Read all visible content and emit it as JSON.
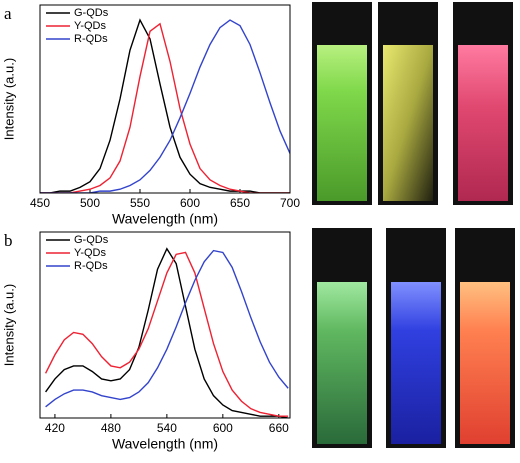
{
  "chart_data": [
    {
      "type": "line",
      "panel_label": "a",
      "x_label": "Wavelength (nm)",
      "y_label": "Intensity (a.u.)",
      "x": [
        450,
        460,
        470,
        480,
        490,
        500,
        510,
        520,
        530,
        540,
        550,
        560,
        570,
        580,
        590,
        600,
        610,
        620,
        630,
        640,
        650,
        660,
        670,
        680,
        690,
        700
      ],
      "xlim": [
        450,
        700
      ],
      "xticks": [
        450,
        500,
        550,
        600,
        650,
        700
      ],
      "ylim": [
        0,
        1
      ],
      "legend": "upper-left",
      "series": [
        {
          "name": "G-QDs",
          "color": "#000000",
          "values": [
            0,
            0,
            0.01,
            0.01,
            0.03,
            0.06,
            0.13,
            0.28,
            0.5,
            0.76,
            0.92,
            0.82,
            0.58,
            0.35,
            0.19,
            0.1,
            0.05,
            0.03,
            0.02,
            0.01,
            0.01,
            0.01,
            0,
            0,
            0,
            0
          ]
        },
        {
          "name": "Y-QDs",
          "color": "#ee2233",
          "values": [
            0,
            0,
            0,
            0,
            0.01,
            0.02,
            0.04,
            0.08,
            0.17,
            0.35,
            0.62,
            0.86,
            0.9,
            0.7,
            0.45,
            0.26,
            0.13,
            0.07,
            0.04,
            0.02,
            0.01,
            0,
            0,
            0,
            0,
            0
          ]
        },
        {
          "name": "R-QDs",
          "color": "#3344cc",
          "values": [
            0,
            0,
            0,
            0,
            0,
            0,
            0.01,
            0.01,
            0.02,
            0.04,
            0.07,
            0.12,
            0.19,
            0.28,
            0.4,
            0.53,
            0.67,
            0.79,
            0.88,
            0.92,
            0.89,
            0.79,
            0.64,
            0.48,
            0.33,
            0.21
          ]
        }
      ]
    },
    {
      "type": "line",
      "panel_label": "b",
      "x_label": "Wavelength (nm)",
      "y_label": "Intensity (a.u.)",
      "x": [
        410,
        420,
        430,
        440,
        450,
        460,
        470,
        480,
        490,
        500,
        510,
        520,
        530,
        540,
        550,
        560,
        570,
        580,
        590,
        600,
        610,
        620,
        630,
        640,
        650,
        660,
        670
      ],
      "xlim": [
        404,
        672
      ],
      "xticks": [
        420,
        480,
        540,
        600,
        660
      ],
      "ylim": [
        0,
        1
      ],
      "legend": "upper-left",
      "series": [
        {
          "name": "G-QDs",
          "color": "#000000",
          "values": [
            0.14,
            0.21,
            0.26,
            0.28,
            0.28,
            0.25,
            0.21,
            0.2,
            0.21,
            0.26,
            0.38,
            0.58,
            0.8,
            0.91,
            0.83,
            0.6,
            0.37,
            0.21,
            0.12,
            0.07,
            0.04,
            0.03,
            0.02,
            0.01,
            0.01,
            0.01,
            0
          ]
        },
        {
          "name": "Y-QDs",
          "color": "#ee2233",
          "values": [
            0.24,
            0.34,
            0.42,
            0.46,
            0.45,
            0.4,
            0.33,
            0.28,
            0.27,
            0.3,
            0.37,
            0.48,
            0.63,
            0.78,
            0.88,
            0.89,
            0.78,
            0.59,
            0.4,
            0.25,
            0.15,
            0.09,
            0.05,
            0.03,
            0.02,
            0.01,
            0.01
          ]
        },
        {
          "name": "R-QDs",
          "color": "#3344cc",
          "values": [
            0.06,
            0.1,
            0.13,
            0.15,
            0.15,
            0.14,
            0.12,
            0.11,
            0.1,
            0.11,
            0.14,
            0.19,
            0.27,
            0.37,
            0.49,
            0.62,
            0.74,
            0.84,
            0.9,
            0.89,
            0.81,
            0.68,
            0.54,
            0.41,
            0.3,
            0.22,
            0.16
          ]
        }
      ]
    }
  ]
}
